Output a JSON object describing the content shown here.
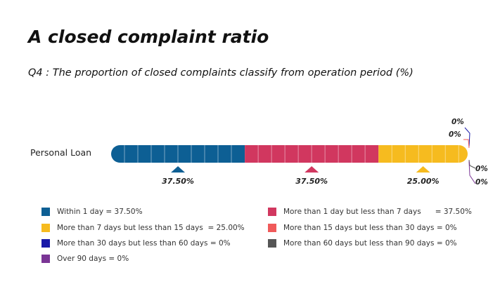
{
  "title": "A closed complaint ratio",
  "subtitle": "Q4 : The proportion of closed complaints classify from operation period (%)",
  "chart_data": {
    "type": "bar",
    "orientation": "horizontal-stacked",
    "categories": [
      "Personal Loan"
    ],
    "series": [
      {
        "name": "Within 1 day",
        "values": [
          37.5
        ],
        "color": "#0d5f94",
        "data_label": "37.50%"
      },
      {
        "name": "More than 1 day but less than 7 days",
        "values": [
          37.5
        ],
        "color": "#d1375f",
        "data_label": "37.50%"
      },
      {
        "name": "More than 7 days but less than 15 days",
        "values": [
          25.0
        ],
        "color": "#f6bb1f",
        "data_label": "25.00%"
      },
      {
        "name": "More than 15 days but less than 30 days",
        "values": [
          0
        ],
        "color": "#f05a5a",
        "data_label": "0%"
      },
      {
        "name": "More than 30 days but less than 60 days",
        "values": [
          0
        ],
        "color": "#1919a8",
        "data_label": "0%"
      },
      {
        "name": "More than 60 days but less than 90 days",
        "values": [
          0
        ],
        "color": "#555555",
        "data_label": "0%"
      },
      {
        "name": "Over 90 days",
        "values": [
          0
        ],
        "color": "#7a3595",
        "data_label": "0%"
      }
    ],
    "xlim": [
      0,
      100
    ],
    "grid": false,
    "legend_position": "bottom"
  },
  "legend": [
    {
      "text": "Within 1 day = 37.50%",
      "color": "#0d5f94"
    },
    {
      "text": "More than 7 days but less than 15 days  = 25.00%",
      "color": "#f6bb1f"
    },
    {
      "text": "More than 30 days but less than 60 days = 0%",
      "color": "#1919a8"
    },
    {
      "text": "Over 90 days = 0%",
      "color": "#7a3595"
    },
    {
      "text": "More than 1 day but less than 7 days      = 37.50%",
      "color": "#d1375f"
    },
    {
      "text": "More than 15 days but less than 30 days = 0%",
      "color": "#f05a5a"
    },
    {
      "text": "More than 60 days but less than 90 days = 0%",
      "color": "#555555"
    }
  ]
}
